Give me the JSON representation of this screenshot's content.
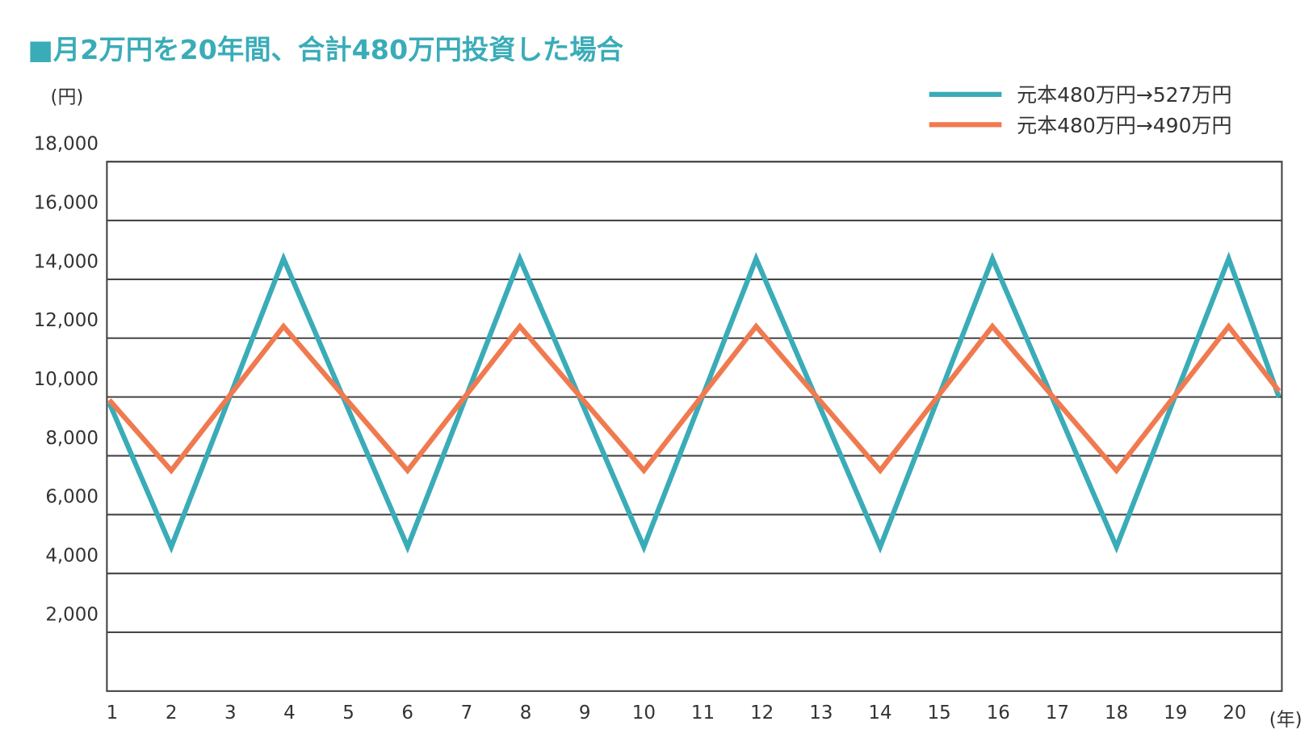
{
  "chart_data": {
    "type": "line",
    "title": "■月2万円を20年間、合計480万円投資した場合",
    "y_label": "(円)",
    "x_label": "(年)",
    "xlim": [
      0.91,
      20.8
    ],
    "xticks": [
      1,
      2,
      3,
      4,
      5,
      6,
      7,
      8,
      9,
      10,
      11,
      12,
      13,
      14,
      15,
      16,
      17,
      18,
      19,
      20
    ],
    "ylim": [
      0,
      18000
    ],
    "yticks": [
      {
        "value": 2000,
        "label": "2,000"
      },
      {
        "value": 4000,
        "label": "4,000"
      },
      {
        "value": 6000,
        "label": "6,000"
      },
      {
        "value": 8000,
        "label": "8,000"
      },
      {
        "value": 10000,
        "label": "10,000"
      },
      {
        "value": 12000,
        "label": "12,000"
      },
      {
        "value": 14000,
        "label": "14,000"
      },
      {
        "value": 16000,
        "label": "16,000"
      },
      {
        "value": 18000,
        "label": "18,000"
      }
    ],
    "grid": true,
    "legend": "top-right",
    "x": [
      0.95,
      2,
      3.9,
      6,
      7.9,
      10,
      11.9,
      14,
      15.9,
      18,
      19.9,
      20.75
    ],
    "series": [
      {
        "name": "元本480万円→527万円",
        "color": "#3aacb8",
        "values": [
          9800,
          4900,
          14700,
          4900,
          14700,
          4900,
          14700,
          4900,
          14700,
          4900,
          14700,
          10000
        ]
      },
      {
        "name": "元本480万円→490万円",
        "color": "#f07a50",
        "values": [
          9900,
          7500,
          12400,
          7500,
          12400,
          7500,
          12400,
          7500,
          12400,
          7500,
          12400,
          10200
        ]
      }
    ]
  }
}
